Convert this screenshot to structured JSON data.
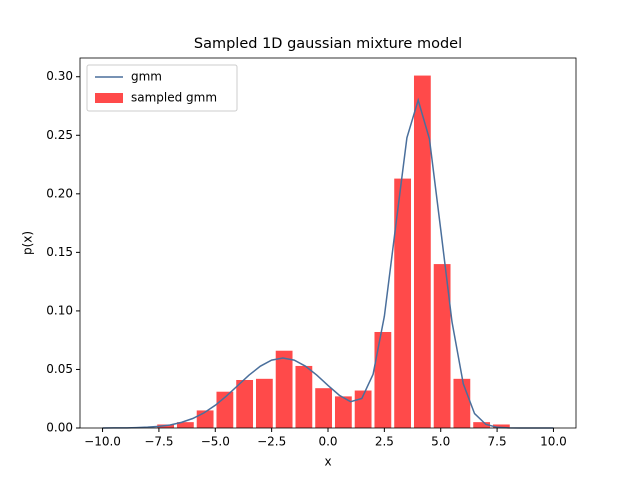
{
  "chart_data": {
    "type": "histogram",
    "title": "Sampled 1D gaussian mixture model",
    "x_label": "x",
    "y_label": "p(x)",
    "xlim": [
      -11,
      11
    ],
    "ylim": [
      0,
      0.316
    ],
    "xticks": [
      {
        "value": -10,
        "label": "−10.0"
      },
      {
        "value": -7.5,
        "label": "−7.5"
      },
      {
        "value": -5,
        "label": "−5.0"
      },
      {
        "value": -2.5,
        "label": "−2.5"
      },
      {
        "value": 0,
        "label": "0.0"
      },
      {
        "value": 2.5,
        "label": "2.5"
      },
      {
        "value": 5,
        "label": "5.0"
      },
      {
        "value": 7.5,
        "label": "7.5"
      },
      {
        "value": 10,
        "label": "10.0"
      }
    ],
    "yticks": [
      {
        "value": 0,
        "label": "0.00"
      },
      {
        "value": 0.05,
        "label": "0.05"
      },
      {
        "value": 0.1,
        "label": "0.10"
      },
      {
        "value": 0.15,
        "label": "0.15"
      },
      {
        "value": 0.2,
        "label": "0.20"
      },
      {
        "value": 0.25,
        "label": "0.25"
      },
      {
        "value": 0.3,
        "label": "0.30"
      }
    ],
    "legend": "upper left",
    "series": [
      {
        "name": "gmm",
        "type": "line",
        "color": "#4a6f9c",
        "x": [
          -10,
          -9.5,
          -9,
          -8.5,
          -8,
          -7.5,
          -7,
          -6.5,
          -6,
          -5.5,
          -5,
          -4.5,
          -4,
          -3.5,
          -3,
          -2.5,
          -2,
          -1.5,
          -1,
          -0.5,
          0,
          0.5,
          1,
          1.5,
          2,
          2.5,
          3,
          3.5,
          4,
          4.5,
          5,
          5.5,
          6,
          6.5,
          7,
          7.5,
          8,
          8.5,
          9,
          9.5,
          10
        ],
        "values": [
          0.0,
          0.0001,
          0.0001,
          0.0003,
          0.0007,
          0.0014,
          0.0026,
          0.0048,
          0.0081,
          0.0129,
          0.0194,
          0.0274,
          0.0363,
          0.0452,
          0.0528,
          0.058,
          0.0598,
          0.058,
          0.0528,
          0.0452,
          0.0364,
          0.028,
          0.0225,
          0.0252,
          0.0459,
          0.0954,
          0.172,
          0.2479,
          0.28,
          0.2468,
          0.1695,
          0.0906,
          0.0378,
          0.0123,
          0.0031,
          0.0006,
          0.0001,
          0.0,
          0.0,
          0.0,
          0.0
        ]
      },
      {
        "name": "sampled gmm",
        "type": "histogram",
        "color": "#ff4a4a",
        "bins": [
          -7.64,
          -6.764,
          -5.888,
          -5.012,
          -4.136,
          -3.26,
          -2.384,
          -1.508,
          -0.632,
          0.244,
          1.12,
          1.996,
          2.872,
          3.748,
          4.624,
          5.5,
          6.376,
          7.252,
          8.128
        ],
        "values": [
          0.003,
          0.005,
          0.015,
          0.031,
          0.041,
          0.042,
          0.066,
          0.053,
          0.034,
          0.027,
          0.032,
          0.082,
          0.213,
          0.301,
          0.14,
          0.042,
          0.005,
          0.003
        ]
      }
    ]
  }
}
